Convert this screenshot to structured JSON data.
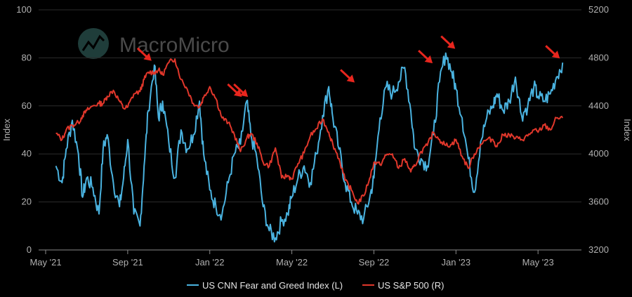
{
  "chart_data": {
    "type": "line",
    "title": "",
    "watermark": "MacroMicro",
    "y_left_label": "Index",
    "y_right_label": "Index",
    "ylim_left": [
      0,
      100
    ],
    "ylim_right": [
      3200,
      5200
    ],
    "yticks_left": [
      "0",
      "20",
      "40",
      "60",
      "80",
      "100"
    ],
    "yticks_right": [
      "3200",
      "3600",
      "4000",
      "4400",
      "4800",
      "5200"
    ],
    "x_ticks": [
      "May '21",
      "Sep '21",
      "Jan '22",
      "May '22",
      "Sep '22",
      "Jan '23",
      "May '23"
    ],
    "x_range_months": [
      0,
      25.5
    ],
    "series": [
      {
        "name": "US CNN Fear and Greed Index (L)",
        "axis": "left",
        "color": "#4ab3e0",
        "x": [
          0.5,
          0.8,
          1.0,
          1.3,
          1.6,
          1.8,
          2.0,
          2.3,
          2.6,
          2.8,
          3.0,
          3.3,
          3.6,
          3.8,
          4.0,
          4.3,
          4.6,
          4.8,
          5.0,
          5.3,
          5.5,
          5.7,
          6.0,
          6.3,
          6.6,
          6.9,
          7.2,
          7.5,
          7.7,
          8.0,
          8.3,
          8.6,
          8.9,
          9.2,
          9.5,
          9.8,
          10.0,
          10.3,
          10.6,
          10.9,
          11.2,
          11.5,
          11.8,
          12.0,
          12.3,
          12.6,
          12.9,
          13.2,
          13.5,
          13.8,
          14.0,
          14.3,
          14.6,
          14.9,
          15.2,
          15.5,
          15.8,
          16.0,
          16.3,
          16.6,
          16.9,
          17.2,
          17.5,
          17.8,
          18.0,
          18.3,
          18.6,
          18.9,
          19.2,
          19.5,
          19.8,
          20.0,
          20.3,
          20.6,
          20.9,
          21.2,
          21.5,
          21.8,
          22.0,
          22.3,
          22.6,
          22.9,
          23.2,
          23.5,
          23.8,
          24.0,
          24.3,
          24.6,
          24.9,
          25.2
        ],
        "y": [
          35,
          28,
          42,
          54,
          40,
          22,
          30,
          26,
          15,
          42,
          48,
          28,
          18,
          30,
          46,
          15,
          10,
          35,
          58,
          77,
          55,
          62,
          45,
          30,
          50,
          42,
          48,
          62,
          40,
          25,
          18,
          15,
          28,
          40,
          44,
          62,
          48,
          38,
          18,
          8,
          5,
          12,
          15,
          22,
          30,
          35,
          28,
          40,
          56,
          68,
          55,
          42,
          28,
          20,
          15,
          13,
          22,
          30,
          55,
          68,
          65,
          70,
          76,
          58,
          42,
          38,
          35,
          48,
          70,
          82,
          74,
          67,
          55,
          38,
          24,
          45,
          55,
          60,
          65,
          58,
          62,
          72,
          56,
          60,
          68,
          64,
          62,
          65,
          72,
          78
        ]
      },
      {
        "name": "US S&P 500 (R)",
        "axis": "right",
        "color": "#e0372b",
        "x": [
          0.5,
          0.8,
          1.0,
          1.3,
          1.6,
          1.8,
          2.0,
          2.3,
          2.6,
          2.8,
          3.0,
          3.3,
          3.6,
          3.8,
          4.0,
          4.3,
          4.6,
          4.8,
          5.0,
          5.3,
          5.5,
          5.7,
          6.0,
          6.3,
          6.6,
          6.9,
          7.2,
          7.5,
          7.7,
          8.0,
          8.3,
          8.6,
          8.9,
          9.2,
          9.5,
          9.8,
          10.0,
          10.3,
          10.6,
          10.9,
          11.2,
          11.5,
          11.8,
          12.0,
          12.3,
          12.6,
          12.9,
          13.2,
          13.5,
          13.8,
          14.0,
          14.3,
          14.6,
          14.9,
          15.2,
          15.5,
          15.8,
          16.0,
          16.3,
          16.6,
          16.9,
          17.2,
          17.5,
          17.8,
          18.0,
          18.3,
          18.6,
          18.9,
          19.2,
          19.5,
          19.8,
          20.0,
          20.3,
          20.6,
          20.9,
          21.2,
          21.5,
          21.8,
          22.0,
          22.3,
          22.6,
          22.9,
          23.2,
          23.5,
          23.8,
          24.0,
          24.3,
          24.6,
          24.9,
          25.2
        ],
        "y": [
          4170,
          4120,
          4200,
          4240,
          4260,
          4320,
          4360,
          4400,
          4420,
          4420,
          4480,
          4530,
          4440,
          4380,
          4390,
          4500,
          4520,
          4620,
          4680,
          4680,
          4700,
          4660,
          4760,
          4790,
          4620,
          4540,
          4420,
          4390,
          4470,
          4560,
          4460,
          4300,
          4260,
          4160,
          4020,
          4130,
          4170,
          4090,
          3930,
          3900,
          4050,
          3800,
          3820,
          3790,
          3920,
          4010,
          4150,
          4210,
          4290,
          4180,
          4080,
          3960,
          3780,
          3700,
          3590,
          3650,
          3800,
          3930,
          3910,
          3990,
          4000,
          3880,
          3960,
          3850,
          3900,
          4020,
          4070,
          4180,
          4120,
          4070,
          4080,
          4120,
          3980,
          3880,
          4000,
          4080,
          4120,
          4120,
          4060,
          4160,
          4160,
          4130,
          4120,
          4150,
          4200,
          4180,
          4240,
          4200,
          4300,
          4300
        ]
      }
    ],
    "arrow_count": 7
  }
}
